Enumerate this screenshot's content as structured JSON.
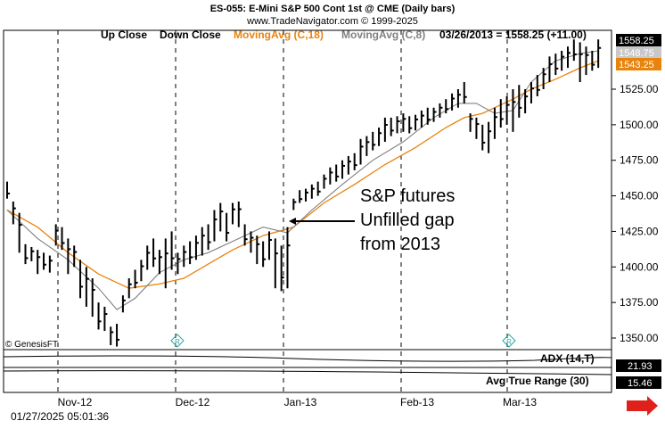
{
  "header": {
    "title": "ES-055: E-Mini S&P 500 Cont 1st @ CME  (Daily bars)",
    "subtitle": "www.TradeNavigator.com © 1999-2025"
  },
  "legend": {
    "up_close": "Up Close",
    "down_close": "Down Close",
    "ma18": "MovingAvg (C,18)",
    "ma8": "MovingAvg (C,8)",
    "quote": "03/26/2013 = 1558.25 (+11.00)"
  },
  "colors": {
    "ma18": "#e8830c",
    "ma8": "#808080",
    "price_box": "#000000",
    "ma18_box": "#e8830c",
    "ma8_box": "#c8c8c8",
    "arrow_icon": "#e0201b",
    "r_marker": "#2aa6a0"
  },
  "annotation": {
    "line1": "S&P futures",
    "line2": "Unfilled gap",
    "line3": "from 2013"
  },
  "watermark": "© GenesisFT",
  "indicators": {
    "adx_label": "ADX (14,T)",
    "adx_value": "21.93",
    "atr_label": "Avg True Range (30)",
    "atr_value": "15.46"
  },
  "timestamp": "01/27/2025 05:01:36",
  "price_labels": {
    "last": "1558.25",
    "ma8": "1548.75",
    "ma18": "1543.25"
  },
  "chart_data": {
    "type": "ohlc",
    "title": "ES-055: E-Mini S&P 500 Cont 1st @ CME  (Daily bars)",
    "y_ticks": [
      "1350.00",
      "1375.00",
      "1400.00",
      "1425.00",
      "1450.00",
      "1475.00",
      "1500.00",
      "1525.00"
    ],
    "y_tick_values": [
      1350,
      1375,
      1400,
      1425,
      1450,
      1475,
      1500,
      1525
    ],
    "ylim": [
      1340,
      1565
    ],
    "x_ticks": [
      "Nov-12",
      "Dec-12",
      "Jan-13",
      "Feb-13",
      "Mar-13"
    ],
    "x_tick_bar_index": [
      18,
      56,
      94,
      132,
      168
    ],
    "grid_vertical": true,
    "grid_style": "dotted",
    "series": [
      {
        "name": "MovingAvg (C,18)",
        "values_at": [
          [
            0,
            1440
          ],
          [
            10,
            1428
          ],
          [
            20,
            1410
          ],
          [
            30,
            1395
          ],
          [
            40,
            1385
          ],
          [
            50,
            1388
          ],
          [
            58,
            1392
          ],
          [
            66,
            1402
          ],
          [
            74,
            1412
          ],
          [
            84,
            1422
          ],
          [
            94,
            1428
          ],
          [
            104,
            1445
          ],
          [
            114,
            1458
          ],
          [
            124,
            1472
          ],
          [
            134,
            1484
          ],
          [
            144,
            1498
          ],
          [
            150,
            1505
          ],
          [
            156,
            1508
          ],
          [
            160,
            1512
          ],
          [
            166,
            1518
          ],
          [
            172,
            1525
          ],
          [
            180,
            1532
          ],
          [
            188,
            1540
          ],
          [
            194,
            1545
          ]
        ]
      },
      {
        "name": "MovingAvg (C,8)",
        "values_at": [
          [
            0,
            1440
          ],
          [
            10,
            1420
          ],
          [
            20,
            1405
          ],
          [
            30,
            1385
          ],
          [
            36,
            1370
          ],
          [
            42,
            1378
          ],
          [
            50,
            1396
          ],
          [
            58,
            1405
          ],
          [
            66,
            1410
          ],
          [
            74,
            1418
          ],
          [
            84,
            1428
          ],
          [
            92,
            1424
          ],
          [
            100,
            1440
          ],
          [
            110,
            1458
          ],
          [
            120,
            1475
          ],
          [
            130,
            1488
          ],
          [
            140,
            1505
          ],
          [
            148,
            1515
          ],
          [
            154,
            1515
          ],
          [
            160,
            1508
          ],
          [
            166,
            1510
          ],
          [
            172,
            1530
          ],
          [
            180,
            1545
          ],
          [
            188,
            1550
          ],
          [
            194,
            1552
          ]
        ]
      }
    ],
    "bars": [
      [
        0,
        1460,
        1448
      ],
      [
        2,
        1446,
        1430
      ],
      [
        4,
        1438,
        1410
      ],
      [
        6,
        1416,
        1402
      ],
      [
        8,
        1414,
        1404
      ],
      [
        10,
        1412,
        1395
      ],
      [
        12,
        1410,
        1398
      ],
      [
        14,
        1408,
        1396
      ],
      [
        16,
        1430,
        1415
      ],
      [
        18,
        1428,
        1412
      ],
      [
        20,
        1420,
        1395
      ],
      [
        22,
        1415,
        1400
      ],
      [
        24,
        1405,
        1378
      ],
      [
        26,
        1400,
        1372
      ],
      [
        28,
        1392,
        1365
      ],
      [
        30,
        1375,
        1356
      ],
      [
        32,
        1372,
        1355
      ],
      [
        34,
        1358,
        1345
      ],
      [
        36,
        1360,
        1344
      ],
      [
        38,
        1380,
        1368
      ],
      [
        40,
        1392,
        1378
      ],
      [
        42,
        1398,
        1385
      ],
      [
        44,
        1405,
        1390
      ],
      [
        46,
        1415,
        1398
      ],
      [
        48,
        1420,
        1400
      ],
      [
        50,
        1412,
        1395
      ],
      [
        52,
        1420,
        1385
      ],
      [
        54,
        1425,
        1398
      ],
      [
        56,
        1410,
        1395
      ],
      [
        58,
        1415,
        1400
      ],
      [
        60,
        1418,
        1402
      ],
      [
        62,
        1422,
        1405
      ],
      [
        64,
        1428,
        1408
      ],
      [
        66,
        1430,
        1412
      ],
      [
        68,
        1440,
        1418
      ],
      [
        70,
        1445,
        1425
      ],
      [
        72,
        1438,
        1418
      ],
      [
        74,
        1445,
        1430
      ],
      [
        76,
        1446,
        1428
      ],
      [
        78,
        1430,
        1415
      ],
      [
        80,
        1425,
        1410
      ],
      [
        82,
        1422,
        1402
      ],
      [
        84,
        1418,
        1400
      ],
      [
        86,
        1425,
        1405
      ],
      [
        88,
        1420,
        1385
      ],
      [
        90,
        1415,
        1383
      ],
      [
        92,
        1428,
        1385
      ],
      [
        94,
        1448,
        1440
      ],
      [
        96,
        1454,
        1445
      ],
      [
        98,
        1455,
        1446
      ],
      [
        100,
        1458,
        1448
      ],
      [
        102,
        1460,
        1450
      ],
      [
        104,
        1465,
        1455
      ],
      [
        106,
        1470,
        1458
      ],
      [
        108,
        1472,
        1460
      ],
      [
        110,
        1475,
        1462
      ],
      [
        112,
        1478,
        1465
      ],
      [
        114,
        1480,
        1468
      ],
      [
        116,
        1490,
        1472
      ],
      [
        118,
        1492,
        1478
      ],
      [
        120,
        1495,
        1482
      ],
      [
        122,
        1498,
        1485
      ],
      [
        124,
        1505,
        1488
      ],
      [
        126,
        1505,
        1492
      ],
      [
        128,
        1506,
        1494
      ],
      [
        130,
        1508,
        1495
      ],
      [
        132,
        1506,
        1494
      ],
      [
        134,
        1507,
        1496
      ],
      [
        136,
        1510,
        1498
      ],
      [
        138,
        1512,
        1500
      ],
      [
        140,
        1512,
        1502
      ],
      [
        142,
        1515,
        1505
      ],
      [
        144,
        1518,
        1508
      ],
      [
        146,
        1522,
        1510
      ],
      [
        148,
        1525,
        1512
      ],
      [
        150,
        1530,
        1515
      ],
      [
        152,
        1508,
        1495
      ],
      [
        154,
        1505,
        1490
      ],
      [
        156,
        1500,
        1482
      ],
      [
        158,
        1502,
        1480
      ],
      [
        160,
        1512,
        1490
      ],
      [
        162,
        1518,
        1498
      ],
      [
        164,
        1520,
        1500
      ],
      [
        166,
        1525,
        1495
      ],
      [
        168,
        1528,
        1505
      ],
      [
        170,
        1525,
        1508
      ],
      [
        172,
        1530,
        1515
      ],
      [
        174,
        1535,
        1520
      ],
      [
        176,
        1540,
        1525
      ],
      [
        178,
        1548,
        1530
      ],
      [
        180,
        1550,
        1535
      ],
      [
        182,
        1552,
        1538
      ],
      [
        184,
        1555,
        1540
      ],
      [
        186,
        1560,
        1545
      ],
      [
        188,
        1558,
        1530
      ],
      [
        190,
        1555,
        1535
      ],
      [
        192,
        1552,
        1538
      ],
      [
        194,
        1560,
        1540
      ]
    ]
  }
}
